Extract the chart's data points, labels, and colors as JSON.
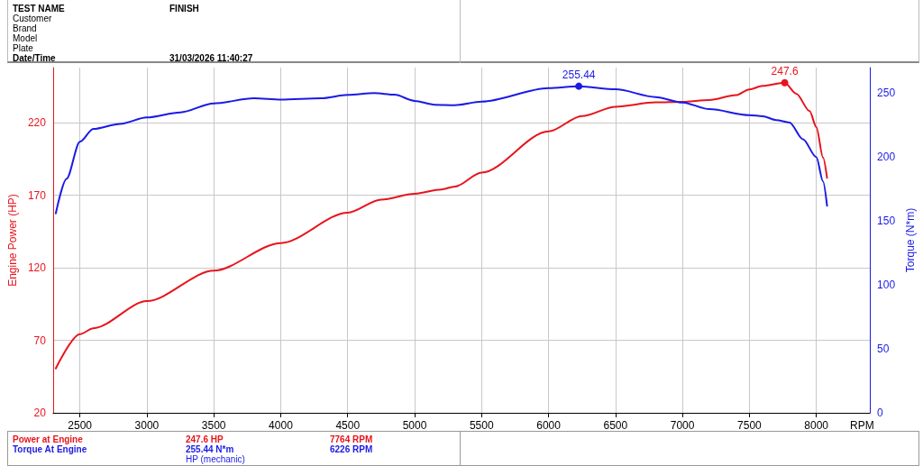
{
  "chart_data": {
    "type": "line",
    "xlabel": "RPM",
    "ylabel": "Engine Power (HP)",
    "y2label": "Torque (N*m)",
    "xlim": [
      2300,
      8400
    ],
    "xticks": [
      2500,
      3000,
      3500,
      4000,
      4500,
      5000,
      5500,
      6000,
      6500,
      7000,
      7500,
      8000
    ],
    "ylim": [
      20,
      258
    ],
    "yticks": [
      20,
      70,
      120,
      170,
      220
    ],
    "y2lim": [
      0,
      270
    ],
    "y2ticks": [
      0,
      50,
      100,
      150,
      200,
      250
    ],
    "grid": true,
    "marker": "none",
    "line_style": "solid",
    "series": [
      {
        "color": "#e8141c",
        "x": [
          2320,
          2500,
          2600,
          3000,
          3500,
          4000,
          4500,
          4750,
          5000,
          5200,
          5300,
          5500,
          6000,
          6250,
          6500,
          6800,
          7000,
          7200,
          7400,
          7500,
          7600,
          7764,
          7850,
          7950,
          8000,
          8050,
          8080
        ],
        "values": [
          50.6,
          74.2,
          78.3,
          97,
          118,
          137,
          158,
          167,
          171,
          174,
          176,
          185.6,
          214,
          224.6,
          231,
          234,
          234.4,
          235.6,
          239,
          243,
          245.4,
          247.6,
          240,
          228,
          217,
          196,
          182
        ],
        "value_labels": [
          null,
          null,
          null,
          null,
          null,
          null,
          null,
          null,
          null,
          null,
          null,
          null,
          null,
          null,
          null,
          null,
          null,
          null,
          null,
          null,
          null,
          "247.6",
          null,
          null,
          null,
          null,
          null
        ]
      },
      {
        "color": "#1a1ae6",
        "axis": "y2",
        "x": [
          2320,
          2400,
          2500,
          2600,
          2800,
          3000,
          3250,
          3500,
          3800,
          4000,
          4300,
          4500,
          4700,
          4850,
          5000,
          5150,
          5300,
          5500,
          6000,
          6226,
          6500,
          6800,
          7000,
          7200,
          7500,
          7600,
          7700,
          7800,
          7900,
          8000,
          8050,
          8080
        ],
        "values": [
          156,
          183,
          212,
          222,
          226,
          231,
          235,
          242,
          246,
          245,
          246,
          248.6,
          250,
          248.8,
          244,
          241,
          240.6,
          243.4,
          254,
          255.44,
          253,
          247,
          242.7,
          237.5,
          232.8,
          232,
          229,
          227,
          214,
          200,
          181,
          162
        ],
        "value_labels": [
          null,
          null,
          null,
          null,
          null,
          null,
          null,
          null,
          null,
          null,
          null,
          null,
          null,
          null,
          null,
          null,
          null,
          null,
          null,
          "255.44",
          null,
          null,
          null,
          null,
          null,
          null,
          null,
          null,
          null,
          null,
          null,
          null
        ]
      }
    ],
    "annotations": [
      "TEST NAME",
      "FINISH",
      "Customer",
      "Brand",
      "Model",
      "Plate",
      "Date/Time",
      "31/03/2026 11:40:27",
      "Power at Engine",
      "247.6 HP",
      "7764 RPM",
      "Torque At Engine",
      "255.44 N*m",
      "6226 RPM",
      "HP (mechanic)"
    ]
  }
}
